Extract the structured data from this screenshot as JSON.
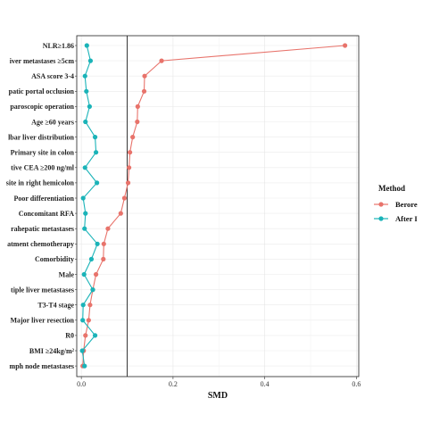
{
  "chart_data": {
    "type": "line",
    "orientation": "horizontal",
    "categories": [
      "NLR≥1.86",
      "iver metastases ≥5cm",
      "ASA score 3-4",
      "patic portal occlusion",
      "paroscopic operation",
      "Age ≥60 years",
      "lbar liver distribution",
      "Primary site in colon",
      "tive CEA ≥200 ng/ml",
      "site in right hemicolon",
      "Poor differentiation",
      "Concomitant RFA",
      "rahepatic metastases",
      "atment chemotherapy",
      "Comorbidity",
      "Male",
      "tiple liver metastases",
      "T3-T4 stage",
      "Major liver resection",
      "R0",
      "BMI ≥24kg/m²",
      "mph node metastases"
    ],
    "series": [
      {
        "name": "Berore",
        "color": "#e8736b",
        "values": [
          0.575,
          0.175,
          0.138,
          0.137,
          0.123,
          0.122,
          0.112,
          0.106,
          0.104,
          0.102,
          0.094,
          0.086,
          0.058,
          0.049,
          0.048,
          0.032,
          0.025,
          0.019,
          0.016,
          0.009,
          0.005,
          0.003
        ]
      },
      {
        "name": "After I",
        "color": "#1ab3b8",
        "values": [
          0.012,
          0.02,
          0.008,
          0.011,
          0.018,
          0.009,
          0.03,
          0.032,
          0.008,
          0.034,
          0.004,
          0.009,
          0.007,
          0.035,
          0.022,
          0.006,
          0.025,
          0.004,
          0.003,
          0.03,
          0.002,
          0.007
        ]
      }
    ],
    "xlabel": "SMD",
    "ylabel": "",
    "xlim": [
      -0.01,
      0.605
    ],
    "xticks": [
      0.0,
      0.2,
      0.4,
      0.6
    ],
    "xtick_labels": [
      "0.0",
      "0.2",
      "0.4",
      "0.6"
    ],
    "reference_line": 0.1,
    "grid": true,
    "legend": {
      "title": "Method",
      "placement": "right"
    }
  }
}
